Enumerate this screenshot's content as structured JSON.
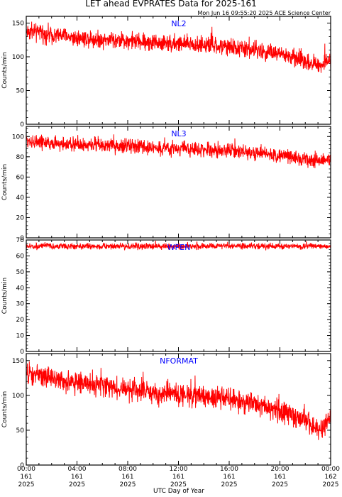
{
  "title": "LET ahead EVPRATES Data for 2025-161",
  "stamp": "Mon Jun 16 09:55:20 2025 ACE Science Center",
  "xlabel": "UTC Day of Year",
  "colors": {
    "trace": "#ff0000",
    "panel_label": "#0000ff",
    "axes": "#000000"
  },
  "chart_data": [
    {
      "type": "line",
      "name": "NL2",
      "ylabel": "Counts/min",
      "ylim": [
        0,
        160
      ],
      "yticks": [
        0,
        50,
        100,
        150
      ],
      "series": [
        {
          "name": "NL2",
          "x_hours": [
            0,
            2,
            4,
            6,
            8,
            10,
            12,
            14,
            16,
            18,
            20,
            22,
            23,
            24
          ],
          "trend": [
            138,
            133,
            128,
            126,
            124,
            121,
            119,
            117,
            114,
            110,
            104,
            94,
            88,
            95
          ],
          "noise": 9
        }
      ]
    },
    {
      "type": "line",
      "name": "NL3",
      "ylabel": "Counts/min",
      "ylim": [
        0,
        110
      ],
      "yticks": [
        0,
        20,
        40,
        60,
        80,
        100
      ],
      "series": [
        {
          "name": "NL3",
          "x_hours": [
            0,
            2,
            4,
            6,
            8,
            10,
            12,
            14,
            16,
            18,
            20,
            22,
            23,
            24
          ],
          "trend": [
            96,
            93,
            92,
            91,
            90,
            89,
            88,
            87,
            86,
            84,
            81,
            78,
            76,
            77
          ],
          "noise": 5
        }
      ]
    },
    {
      "type": "line",
      "name": "WPEN",
      "ylabel": "Counts/min",
      "ylim": [
        0,
        70
      ],
      "yticks": [
        0,
        10,
        20,
        30,
        40,
        50,
        60,
        70
      ],
      "series": [
        {
          "name": "WPEN",
          "x_hours": [
            0,
            24
          ],
          "trend": [
            66,
            66
          ],
          "noise": 1.3
        }
      ]
    },
    {
      "type": "line",
      "name": "NFORMAT",
      "ylabel": "Counts/min",
      "ylim": [
        0,
        160
      ],
      "yticks": [
        0,
        50,
        100,
        150
      ],
      "series": [
        {
          "name": "NFORMAT",
          "x_hours": [
            0,
            2,
            4,
            6,
            8,
            10,
            12,
            14,
            16,
            18,
            20,
            22,
            23,
            24
          ],
          "trend": [
            130,
            124,
            119,
            114,
            108,
            104,
            101,
            98,
            95,
            88,
            78,
            62,
            52,
            62
          ],
          "noise": 11
        }
      ]
    }
  ],
  "x_axis": {
    "range_hours": [
      0,
      24
    ],
    "ticks": [
      {
        "hour": 0,
        "time": "00:00",
        "doy": "161",
        "year": "2025"
      },
      {
        "hour": 4,
        "time": "04:00",
        "doy": "161",
        "year": "2025"
      },
      {
        "hour": 8,
        "time": "08:00",
        "doy": "161",
        "year": "2025"
      },
      {
        "hour": 12,
        "time": "12:00",
        "doy": "161",
        "year": "2025"
      },
      {
        "hour": 16,
        "time": "16:00",
        "doy": "161",
        "year": "2025"
      },
      {
        "hour": 20,
        "time": "20:00",
        "doy": "161",
        "year": "2025"
      },
      {
        "hour": 24,
        "time": "00:00",
        "doy": "162",
        "year": "2025"
      }
    ]
  }
}
